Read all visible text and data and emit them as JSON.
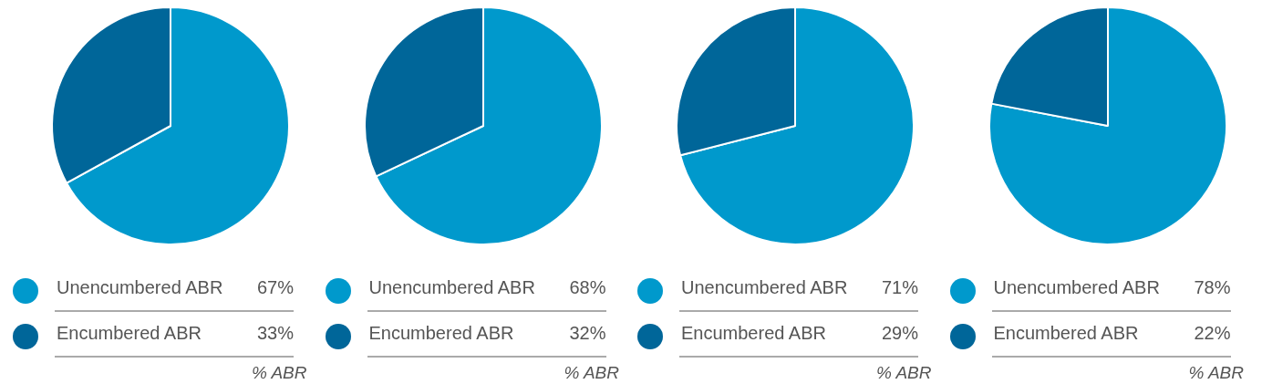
{
  "chart_data": [
    {
      "type": "pie",
      "categories": [
        "Unencumbered ABR",
        "Encumbered ABR"
      ],
      "values": [
        67,
        33
      ],
      "value_labels": [
        "67%",
        "33%"
      ],
      "colors": [
        "#0099cc",
        "#006699"
      ],
      "legend": "bottom",
      "annotations": [
        "% ABR"
      ]
    },
    {
      "type": "pie",
      "categories": [
        "Unencumbered ABR",
        "Encumbered ABR"
      ],
      "values": [
        68,
        32
      ],
      "value_labels": [
        "68%",
        "32%"
      ],
      "colors": [
        "#0099cc",
        "#006699"
      ],
      "legend": "bottom",
      "annotations": [
        "% ABR"
      ]
    },
    {
      "type": "pie",
      "categories": [
        "Unencumbered ABR",
        "Encumbered ABR"
      ],
      "values": [
        71,
        29
      ],
      "value_labels": [
        "71%",
        "29%"
      ],
      "colors": [
        "#0099cc",
        "#006699"
      ],
      "legend": "bottom",
      "annotations": [
        "% ABR"
      ]
    },
    {
      "type": "pie",
      "categories": [
        "Unencumbered ABR",
        "Encumbered ABR"
      ],
      "values": [
        78,
        22
      ],
      "value_labels": [
        "78%",
        "22%"
      ],
      "colors": [
        "#0099cc",
        "#006699"
      ],
      "legend": "bottom",
      "annotations": [
        "% ABR"
      ]
    }
  ]
}
